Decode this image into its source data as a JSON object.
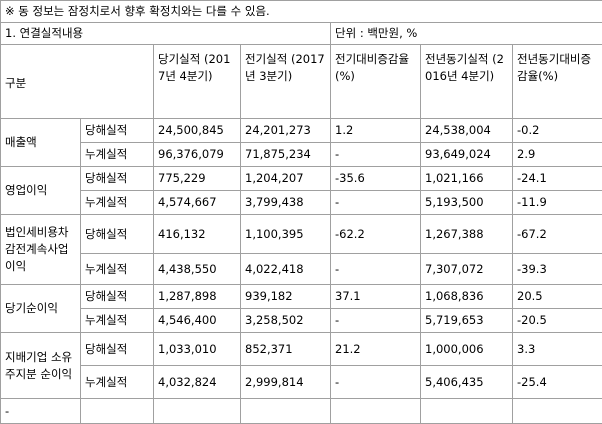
{
  "note": "※ 동 정보는 잠정치로서 향후 확정치와는 다를 수 있음.",
  "section": {
    "title": "1. 연결실적내용",
    "unit": "단위 : 백만원, %"
  },
  "header": [
    "구분",
    "당기실적 (2017년 4분기)",
    "전기실적 (2017년 3분기)",
    "전기대비증감율(%)",
    "전년동기실적 (2016년 4분기)",
    "전년동기대비증감율(%)"
  ],
  "groups": [
    {
      "label": "매출액",
      "rows": [
        [
          "당해실적",
          "24,500,845",
          "24,201,273",
          "1.2",
          "24,538,004",
          "-0.2"
        ],
        [
          "누계실적",
          "96,376,079",
          "71,875,234",
          "-",
          "93,649,024",
          "2.9"
        ]
      ]
    },
    {
      "label": "영업이익",
      "rows": [
        [
          "당해실적",
          "775,229",
          "1,204,207",
          "-35.6",
          "1,021,166",
          "-24.1"
        ],
        [
          "누계실적",
          "4,574,667",
          "3,799,438",
          "-",
          "5,193,500",
          "-11.9"
        ]
      ]
    },
    {
      "label": "법인세비용차감전계속사업이익",
      "rows": [
        [
          "당해실적",
          "416,132",
          "1,100,395",
          "-62.2",
          "1,267,388",
          "-67.2"
        ],
        [
          "누계실적",
          "4,438,550",
          "4,022,418",
          "-",
          "7,307,072",
          "-39.3"
        ]
      ]
    },
    {
      "label": "당기순이익",
      "rows": [
        [
          "당해실적",
          "1,287,898",
          "939,182",
          "37.1",
          "1,068,836",
          "20.5"
        ],
        [
          "누계실적",
          "4,546,400",
          "3,258,502",
          "-",
          "5,719,653",
          "-20.5"
        ]
      ]
    },
    {
      "label": "지배기업 소유주지분 순이익",
      "rows": [
        [
          "당해실적",
          "1,033,010",
          "852,371",
          "21.2",
          "1,000,006",
          "3.3"
        ],
        [
          "누계실적",
          "4,032,824",
          "2,999,814",
          "-",
          "5,406,435",
          "-25.4"
        ]
      ]
    }
  ],
  "last_row": "-"
}
